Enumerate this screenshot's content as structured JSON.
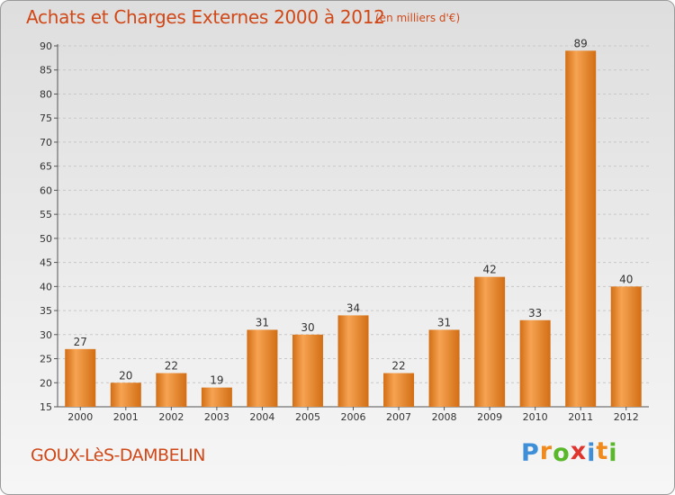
{
  "header": {
    "title": "Achats et Charges Externes 2000 à 2012",
    "subtitle": "(en milliers d'€)"
  },
  "commune_name": "GOUX-LèS-DAMBELIN",
  "logo": {
    "letters": [
      "P",
      "r",
      "o",
      "x",
      "i",
      "t",
      "i"
    ],
    "colors": [
      "#3e8fd8",
      "#f08a1c",
      "#58b82a",
      "#e0342e",
      "#3e8fd8",
      "#f08a1c",
      "#58b82a"
    ]
  },
  "colors": {
    "bar_light": "#f6a352",
    "bar_dark": "#d26e14",
    "text_accent": "#d04818"
  },
  "chart_data": {
    "type": "bar",
    "title": "Achats et Charges Externes 2000 à 2012",
    "subtitle": "(en milliers d'€)",
    "categories": [
      "2000",
      "2001",
      "2002",
      "2003",
      "2004",
      "2005",
      "2006",
      "2007",
      "2008",
      "2009",
      "2010",
      "2011",
      "2012"
    ],
    "values": [
      27,
      20,
      22,
      19,
      31,
      30,
      34,
      22,
      31,
      42,
      33,
      89,
      40
    ],
    "ylim": [
      15,
      90
    ],
    "yticks": [
      15,
      20,
      25,
      30,
      35,
      40,
      45,
      50,
      55,
      60,
      65,
      70,
      75,
      80,
      85,
      90
    ],
    "grid": "horizontal dashed",
    "legend": "none"
  }
}
